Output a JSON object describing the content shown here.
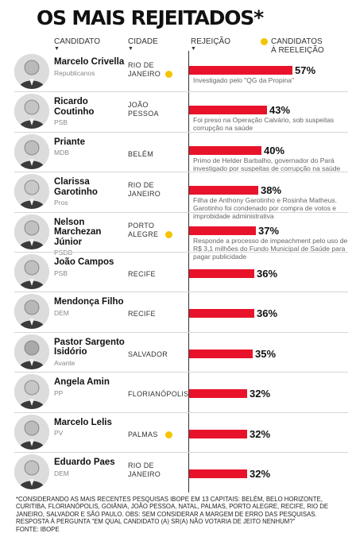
{
  "title": "OS MAIS REJEITADOS*",
  "headers": {
    "candidate": "CANDIDATO",
    "city": "CIDADE",
    "rejection": "REJEIÇÃO",
    "reelection": "CANDIDATOS\nÀ REELEIÇÃO"
  },
  "colors": {
    "bar": "#e8132a",
    "reelection_dot": "#f5c400"
  },
  "chart_data": {
    "type": "bar",
    "orientation": "horizontal",
    "unit": "%",
    "categories": [
      "Marcelo Crivella",
      "Ricardo Coutinho",
      "Priante",
      "Clarissa Garotinho",
      "Nelson Marchezan Júnior",
      "João Campos",
      "Mendonça Filho",
      "Pastor Sargento Isidório",
      "Angela Amin",
      "Marcelo Lelis",
      "Eduardo Paes"
    ],
    "values": [
      57,
      43,
      40,
      38,
      37,
      36,
      36,
      35,
      32,
      32,
      32
    ],
    "xlim": [
      0,
      57
    ]
  },
  "candidates": [
    {
      "name": "Marcelo Crivella",
      "party": "Republicanos",
      "city": "RIO DE JANEIRO",
      "reelection": true,
      "value": 57,
      "label": "57%",
      "note": "Investigado pelo \"QG da Propina\""
    },
    {
      "name": "Ricardo Coutinho",
      "party": "PSB",
      "city": "JOÃO PESSOA",
      "reelection": false,
      "value": 43,
      "label": "43%",
      "note": "Foi preso na Operação Calvário, sob suspeitas corrupção na saúde"
    },
    {
      "name": "Priante",
      "party": "MDB",
      "city": "BELÉM",
      "reelection": false,
      "value": 40,
      "label": "40%",
      "note": "Primo de Helder Barbalho, governador do Pará investigado por suspeitas de corrupção na saúde"
    },
    {
      "name": "Clarissa Garotinho",
      "party": "Pros",
      "city": "RIO DE JANEIRO",
      "reelection": false,
      "value": 38,
      "label": "38%",
      "note": "Filha de Anthony Garotinho e Rosinha Matheus. Garotinho foi condenado por compra de votos e improbidade administrativa"
    },
    {
      "name": "Nelson Marchezan Júnior",
      "party": "PSDB",
      "city": "PORTO ALEGRE",
      "reelection": true,
      "value": 37,
      "label": "37%",
      "note": "Responde a processo de impeachment pelo uso de R$ 3,1 milhões do Fundo Municipal de Saúde para pagar publicidade"
    },
    {
      "name": "João Campos",
      "party": "PSB",
      "city": "RECIFE",
      "reelection": false,
      "value": 36,
      "label": "36%",
      "note": ""
    },
    {
      "name": "Mendonça Filho",
      "party": "DEM",
      "city": "RECIFE",
      "reelection": false,
      "value": 36,
      "label": "36%",
      "note": ""
    },
    {
      "name": "Pastor Sargento Isidório",
      "party": "Avante",
      "city": "SALVADOR",
      "reelection": false,
      "value": 35,
      "label": "35%",
      "note": ""
    },
    {
      "name": "Angela Amin",
      "party": "PP",
      "city": "FLORIANÓPOLIS",
      "reelection": false,
      "value": 32,
      "label": "32%",
      "note": ""
    },
    {
      "name": "Marcelo Lelis",
      "party": "PV",
      "city": "PALMAS",
      "reelection": true,
      "value": 32,
      "label": "32%",
      "note": ""
    },
    {
      "name": "Eduardo Paes",
      "party": "DEM",
      "city": "RIO DE JANEIRO",
      "reelection": false,
      "value": 32,
      "label": "32%",
      "note": ""
    }
  ],
  "footnote": "*Considerando as mais recentes pesquisas Ibope em 13 capitais: Belém, Belo Horizonte, Curitiba, Florianópolis, Goiânia, João Pessoa, Natal, Palmas, Porto Alegre, Recife, Rio de Janeiro, Salvador e São Paulo. Obs: sem considerar a margem de erro das pesquisas. Resposta à pergunta \"Em qual candidato (a) sr(a) não votaria de jeito nenhum?\"",
  "source": "Fonte: Ibope"
}
